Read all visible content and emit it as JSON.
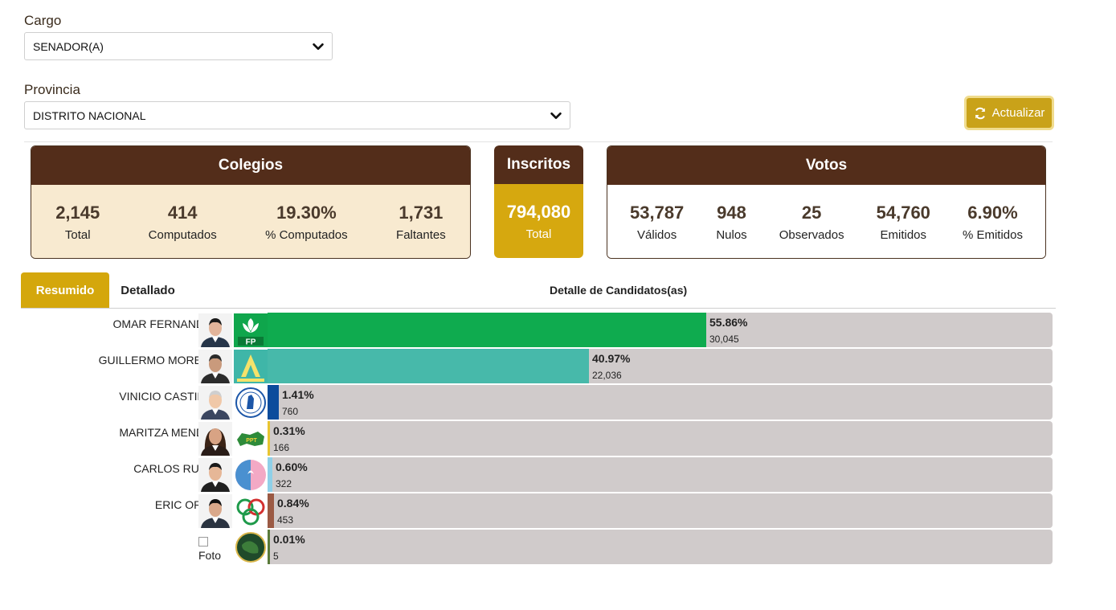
{
  "filters": {
    "cargo_label": "Cargo",
    "cargo_value": "SENADOR(A)",
    "provincia_label": "Provincia",
    "provincia_value": "DISTRITO NACIONAL"
  },
  "refresh_button": {
    "label": "Actualizar",
    "icon": "refresh-icon"
  },
  "colegios": {
    "title": "Colegios",
    "stats": [
      {
        "value": "2,145",
        "label": "Total"
      },
      {
        "value": "414",
        "label": "Computados"
      },
      {
        "value": "19.30%",
        "label": "% Computados"
      },
      {
        "value": "1,731",
        "label": "Faltantes"
      }
    ]
  },
  "inscritos": {
    "title": "Inscritos",
    "value": "794,080",
    "label": "Total"
  },
  "votos": {
    "title": "Votos",
    "stats": [
      {
        "value": "53,787",
        "label": "Válidos"
      },
      {
        "value": "948",
        "label": "Nulos"
      },
      {
        "value": "25",
        "label": "Observados"
      },
      {
        "value": "54,760",
        "label": "Emitidos"
      },
      {
        "value": "6.90%",
        "label": "% Emitidos"
      }
    ]
  },
  "tabs": [
    {
      "label": "Resumido",
      "active": true
    },
    {
      "label": "Detallado",
      "active": false
    }
  ],
  "detalle_title": "Detalle de Candidatos(as)",
  "candidates": [
    {
      "name": "OMAR FERNANDEZ",
      "pct": "55.86%",
      "share": 55.86,
      "votes": "30,045",
      "color": "#0fab4f",
      "party_icon": "fp-party-logo"
    },
    {
      "name": "GUILLERMO MORENO",
      "pct": "40.97%",
      "share": 40.97,
      "votes": "22,036",
      "color": "#47b9aa",
      "party_icon": "alianza-pais-logo"
    },
    {
      "name": "VINICIO CASTILLO",
      "pct": "1.41%",
      "share": 1.41,
      "votes": "760",
      "color": "#0c4c9c",
      "party_icon": "fnp-seal-logo"
    },
    {
      "name": "MARITZA MENDEZ",
      "pct": "0.31%",
      "share": 0.31,
      "votes": "166",
      "color": "#e8c531",
      "party_icon": "map-party-logo"
    },
    {
      "name": "CARLOS RUBIO",
      "pct": "0.60%",
      "share": 0.6,
      "votes": "322",
      "color": "#8fd0e8",
      "party_icon": "circle-party-logo"
    },
    {
      "name": "ERIC ORTIZ",
      "pct": "0.84%",
      "share": 0.84,
      "votes": "453",
      "color": "#9b5a44",
      "party_icon": "rings-party-logo"
    },
    {
      "name": "",
      "pct": "0.01%",
      "share": 0.01,
      "votes": "5",
      "color": "#5a7a3a",
      "party_icon": "globe-party-logo",
      "photo_alt": "Foto"
    }
  ]
}
